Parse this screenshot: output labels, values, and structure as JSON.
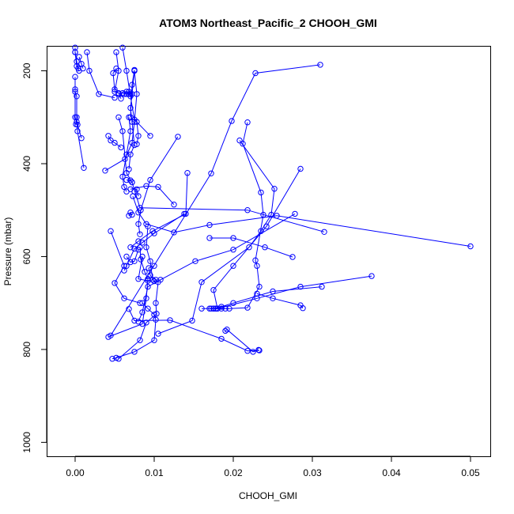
{
  "chart_data": {
    "type": "scatter",
    "title": "ATOM3 Northeast_Pacific_2 CHOOH_GMI",
    "xlabel": "CHOOH_GMI",
    "ylabel": "Pressure (mbar)",
    "xlim": [
      -0.0035,
      0.0525
    ],
    "ylim": [
      1030,
      148
    ],
    "y_reversed": true,
    "grid": false,
    "legend": "none",
    "xticks": [
      0.0,
      0.01,
      0.02,
      0.03,
      0.04,
      0.05
    ],
    "xtick_labels": [
      "0.00",
      "0.01",
      "0.02",
      "0.03",
      "0.04",
      "0.05"
    ],
    "yticks": [
      200,
      400,
      600,
      800,
      1000
    ],
    "ytick_labels": [
      "200",
      "400",
      "600",
      "800",
      "1000"
    ],
    "color": "#0000ff",
    "marker": "open-circle",
    "series": [
      {
        "points": [
          [
            0.031,
            187
          ],
          [
            0.0228,
            205
          ],
          [
            0.0198,
            308
          ],
          [
            0.0172,
            421
          ],
          [
            0.0045,
            770
          ]
        ]
      },
      {
        "points": [
          [
            0.0218,
            311
          ],
          [
            0.0212,
            357
          ],
          [
            0.0235,
            462
          ],
          [
            0.0238,
            510
          ],
          [
            0.0228,
            608
          ],
          [
            0.023,
            620
          ],
          [
            0.0233,
            665
          ],
          [
            0.0218,
            710
          ],
          [
            0.0195,
            712
          ],
          [
            0.0178,
            712
          ],
          [
            0.0172,
            712
          ]
        ]
      },
      {
        "points": [
          [
            0.0208,
            350
          ],
          [
            0.0252,
            454
          ],
          [
            0.0248,
            510
          ],
          [
            0.0235,
            545
          ],
          [
            0.022,
            580
          ],
          [
            0.016,
            655
          ],
          [
            0.0148,
            738
          ],
          [
            0.0105,
            766
          ]
        ]
      },
      {
        "points": [
          [
            0.0285,
            411
          ],
          [
            0.0242,
            535
          ],
          [
            0.02,
            620
          ],
          [
            0.0175,
            672
          ],
          [
            0.018,
            712
          ],
          [
            0.0185,
            712
          ],
          [
            0.019,
            712
          ],
          [
            0.0178,
            712
          ],
          [
            0.016,
            712
          ]
        ]
      },
      {
        "points": [
          [
            0.0315,
            547
          ],
          [
            0.0218,
            500
          ],
          [
            0.0082,
            495
          ],
          [
            0.0072,
            440
          ],
          [
            0.0065,
            420
          ],
          [
            0.006,
            330
          ],
          [
            0.0055,
            300
          ]
        ]
      },
      {
        "points": [
          [
            0.0278,
            508
          ],
          [
            0.02,
            585
          ],
          [
            0.0152,
            610
          ],
          [
            0.0108,
            650
          ],
          [
            0.0092,
            665
          ],
          [
            0.0085,
            720
          ],
          [
            0.008,
            740
          ]
        ]
      },
      {
        "points": [
          [
            0.05,
            578
          ],
          [
            0.0255,
            512
          ],
          [
            0.017,
            532
          ],
          [
            0.0125,
            548
          ],
          [
            0.009,
            530
          ],
          [
            0.008,
            505
          ],
          [
            0.0073,
            470
          ]
        ]
      },
      {
        "points": [
          [
            0.0375,
            642
          ],
          [
            0.0285,
            665
          ],
          [
            0.023,
            690
          ],
          [
            0.018,
            712
          ],
          [
            0.017,
            712
          ],
          [
            0.0175,
            712
          ]
        ]
      },
      {
        "points": [
          [
            0.0312,
            665
          ],
          [
            0.025,
            675
          ],
          [
            0.02,
            700
          ],
          [
            0.0185,
            708
          ],
          [
            0.0175,
            712
          ]
        ]
      },
      {
        "points": [
          [
            0.0288,
            711
          ],
          [
            0.0285,
            705
          ],
          [
            0.025,
            690
          ],
          [
            0.023,
            680
          ]
        ]
      },
      {
        "points": [
          [
            0.0275,
            601
          ],
          [
            0.024,
            580
          ],
          [
            0.02,
            560
          ],
          [
            0.017,
            560
          ]
        ]
      },
      {
        "points": [
          [
            0.0232,
            801
          ],
          [
            0.0225,
            805
          ],
          [
            0.0192,
            757
          ],
          [
            0.019,
            760
          ]
        ]
      },
      {
        "points": [
          [
            0.0233,
            802
          ],
          [
            0.0218,
            803
          ],
          [
            0.0185,
            777
          ],
          [
            0.012,
            737
          ],
          [
            0.0075,
            738
          ],
          [
            0.0068,
            713
          ]
        ]
      },
      {
        "points": [
          [
            0.0047,
            820
          ],
          [
            0.0052,
            818
          ],
          [
            0.0075,
            805
          ],
          [
            0.01,
            780
          ],
          [
            0.0102,
            736
          ],
          [
            0.01,
            725
          ],
          [
            0.0092,
            712
          ],
          [
            0.0085,
            700
          ]
        ]
      },
      {
        "points": [
          [
            0.0055,
            820
          ],
          [
            0.0082,
            780
          ],
          [
            0.009,
            742
          ],
          [
            0.0103,
            723
          ],
          [
            0.0102,
            700
          ],
          [
            0.0105,
            655
          ],
          [
            0.0102,
            650
          ]
        ]
      },
      {
        "points": [
          [
            0.0042,
            773
          ],
          [
            0.0085,
            745
          ],
          [
            0.009,
            690
          ],
          [
            0.0092,
            648
          ],
          [
            0.0088,
            633
          ],
          [
            0.0083,
            606
          ],
          [
            0.0082,
            580
          ]
        ]
      },
      {
        "points": [
          [
            0.0138,
            508
          ],
          [
            0.01,
            550
          ],
          [
            0.0085,
            570
          ],
          [
            0.0075,
            583
          ],
          [
            0.0065,
            620
          ],
          [
            0.0062,
            630
          ]
        ]
      },
      {
        "points": [
          [
            0.0142,
            420
          ],
          [
            0.014,
            508
          ],
          [
            0.0098,
            545
          ],
          [
            0.008,
            567
          ],
          [
            0.007,
            580
          ]
        ]
      },
      {
        "points": [
          [
            0.0125,
            488
          ],
          [
            0.0105,
            450
          ],
          [
            0.009,
            448
          ],
          [
            0.007,
            455
          ]
        ]
      },
      {
        "points": [
          [
            0.013,
            342
          ],
          [
            0.0095,
            435
          ],
          [
            0.0083,
            500
          ],
          [
            0.008,
            530
          ],
          [
            0.0082,
            552
          ]
        ]
      },
      {
        "points": [
          [
            0.0095,
            340
          ],
          [
            0.0075,
            305
          ],
          [
            0.007,
            255
          ],
          [
            0.0065,
            200
          ],
          [
            0.006,
            150
          ]
        ]
      },
      {
        "points": [
          [
            0.0045,
            545
          ],
          [
            0.0062,
            620
          ],
          [
            0.005,
            657
          ],
          [
            0.0062,
            690
          ],
          [
            0.0082,
            700
          ]
        ]
      },
      {
        "points": [
          [
            0.0085,
            600
          ],
          [
            0.008,
            648
          ],
          [
            0.0092,
            652
          ],
          [
            0.0098,
            650
          ]
        ]
      },
      {
        "points": [
          [
            0.0092,
            535
          ],
          [
            0.009,
            580
          ],
          [
            0.0095,
            610
          ],
          [
            0.0098,
            650
          ]
        ]
      },
      {
        "points": [
          [
            0.008,
            585
          ],
          [
            0.0075,
            610
          ],
          [
            0.007,
            612
          ],
          [
            0.0065,
            600
          ]
        ]
      },
      {
        "points": [
          [
            0.0068,
            412
          ],
          [
            0.007,
            380
          ],
          [
            0.0075,
            360
          ],
          [
            0.0072,
            310
          ],
          [
            0.007,
            280
          ],
          [
            0.0072,
            250
          ],
          [
            0.0075,
            200
          ]
        ]
      },
      {
        "points": [
          [
            0.0065,
            460
          ],
          [
            0.0062,
            450
          ],
          [
            0.006,
            428
          ],
          [
            0.0065,
            380
          ],
          [
            0.007,
            330
          ],
          [
            0.0068,
            300
          ]
        ]
      },
      {
        "points": [
          [
            0.0058,
            365
          ],
          [
            0.005,
            355
          ],
          [
            0.0045,
            350
          ],
          [
            0.0042,
            340
          ]
        ]
      },
      {
        "points": [
          [
            0.0038,
            415
          ],
          [
            0.0063,
            390
          ],
          [
            0.0072,
            355
          ],
          [
            0.0075,
            310
          ],
          [
            0.0078,
            250
          ],
          [
            0.0075,
            200
          ]
        ]
      },
      {
        "points": [
          [
            0.0058,
            260
          ],
          [
            0.0055,
            248
          ],
          [
            0.005,
            245
          ],
          [
            0.0055,
            200
          ],
          [
            0.0052,
            160
          ]
        ]
      },
      {
        "points": [
          [
            0.005,
            258
          ],
          [
            0.003,
            250
          ],
          [
            0.0018,
            200
          ],
          [
            0.0015,
            160
          ]
        ]
      },
      {
        "points": [
          [
            0.0055,
            250
          ],
          [
            0.006,
            248
          ],
          [
            0.0065,
            250
          ],
          [
            0.007,
            250
          ],
          [
            0.0068,
            245
          ]
        ]
      },
      {
        "points": [
          [
            0.0004,
            195
          ],
          [
            0.0002,
            180
          ],
          [
            0.0,
            160
          ],
          [
            0.0,
            150
          ]
        ]
      },
      {
        "points": [
          [
            0.001,
            195
          ],
          [
            0.0008,
            185
          ],
          [
            0.0005,
            170
          ]
        ]
      },
      {
        "points": [
          [
            0.0,
            213
          ],
          [
            0.0,
            245
          ],
          [
            0.0002,
            255
          ],
          [
            0.0002,
            310
          ],
          [
            0.0001,
            315
          ]
        ]
      },
      {
        "points": [
          [
            0.0008,
            345
          ],
          [
            0.0003,
            316
          ],
          [
            0.0,
            300
          ],
          [
            0.0,
            240
          ]
        ]
      },
      {
        "points": [
          [
            0.0011,
            409
          ],
          [
            0.0003,
            330
          ],
          [
            0.0002,
            300
          ]
        ]
      },
      {
        "points": [
          [
            0.0005,
            200
          ],
          [
            0.0002,
            190
          ],
          [
            0.0,
            160
          ]
        ]
      },
      {
        "points": [
          [
            0.0052,
            195
          ],
          [
            0.0048,
            205
          ],
          [
            0.005,
            240
          ]
        ]
      },
      {
        "points": [
          [
            0.0075,
            198
          ],
          [
            0.0072,
            230
          ],
          [
            0.007,
            300
          ]
        ]
      },
      {
        "points": [
          [
            0.0062,
            250
          ],
          [
            0.0065,
            245
          ],
          [
            0.0068,
            250
          ]
        ]
      },
      {
        "points": [
          [
            0.0078,
            358
          ],
          [
            0.008,
            340
          ],
          [
            0.0078,
            310
          ]
        ]
      },
      {
        "points": [
          [
            0.01,
            653
          ],
          [
            0.0095,
            640
          ],
          [
            0.0093,
            625
          ],
          [
            0.01,
            620
          ]
        ]
      },
      {
        "points": [
          [
            0.0065,
            435
          ],
          [
            0.007,
            436
          ],
          [
            0.0072,
            440
          ]
        ]
      },
      {
        "points": [
          [
            0.0072,
            510
          ],
          [
            0.007,
            505
          ],
          [
            0.0068,
            512
          ]
        ]
      },
      {
        "points": [
          [
            0.0075,
            460
          ],
          [
            0.0078,
            455
          ],
          [
            0.008,
            470
          ]
        ]
      }
    ]
  }
}
